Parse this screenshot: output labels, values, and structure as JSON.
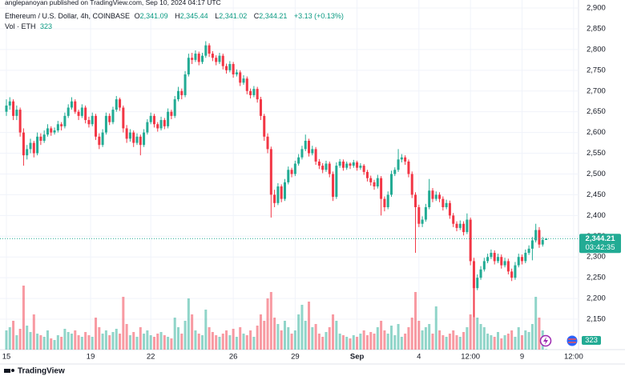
{
  "header": {
    "publisher": "anglepanoyan published on TradingView.com, Sep 10, 2024 04:17 UTC"
  },
  "footer": {
    "brand": "TradingView"
  },
  "chart_data": {
    "type": "candlestick",
    "legend": {
      "symbol": "Ethereum / U.S. Dollar, 4h, COINBASE",
      "ohlc": [
        {
          "key": "O",
          "value": "2,341.09"
        },
        {
          "key": "H",
          "value": "2,345.44"
        },
        {
          "key": "L",
          "value": "2,341.02"
        },
        {
          "key": "C",
          "value": "2,344.21"
        }
      ],
      "change": "+3.13 (+0.13%)",
      "volume_label": "Vol · ETH"
    },
    "countdown": "03:42:35",
    "up_color": "#22ab94",
    "down_color": "#f23645",
    "grid": true,
    "ylim": [
      2076.8,
      2919.3
    ],
    "yticks": [
      {
        "value": 2150,
        "label": "2,150"
      },
      {
        "value": 2200,
        "label": "2,200"
      },
      {
        "value": 2250,
        "label": "2,250"
      },
      {
        "value": 2300,
        "label": "2,300"
      },
      {
        "value": 2350,
        "label": "2,350"
      },
      {
        "value": 2400,
        "label": "2,400"
      },
      {
        "value": 2450,
        "label": "2,450"
      },
      {
        "value": 2500,
        "label": "2,500"
      },
      {
        "value": 2550,
        "label": "2,550"
      },
      {
        "value": 2600,
        "label": "2,600"
      },
      {
        "value": 2650,
        "label": "2,650"
      },
      {
        "value": 2700,
        "label": "2,700"
      },
      {
        "value": 2750,
        "label": "2,750"
      },
      {
        "value": 2800,
        "label": "2,800"
      },
      {
        "value": 2850,
        "label": "2,850"
      },
      {
        "value": 2900,
        "label": "2,900"
      }
    ],
    "xlim": [
      -1.86,
      166.43
    ],
    "xticks": [
      {
        "value": 0,
        "label": "15"
      },
      {
        "value": 24.5,
        "label": "19"
      },
      {
        "value": 42,
        "label": "22"
      },
      {
        "value": 66,
        "label": "26"
      },
      {
        "value": 84,
        "label": "29"
      },
      {
        "value": 102,
        "label": "Sep"
      },
      {
        "value": 120,
        "label": "4"
      },
      {
        "value": 135,
        "label": "12:00"
      },
      {
        "value": 150,
        "label": "9"
      },
      {
        "value": 165,
        "label": "12:00"
      }
    ],
    "vol_ylim": [
      0,
      45000
    ],
    "ohlc": [
      [
        2650,
        2680,
        2640,
        2665
      ],
      [
        2665,
        2685,
        2655,
        2675
      ],
      [
        2675,
        2680,
        2630,
        2640
      ],
      [
        2640,
        2665,
        2630,
        2655
      ],
      [
        2655,
        2660,
        2590,
        2600
      ],
      [
        2600,
        2610,
        2520,
        2545
      ],
      [
        2545,
        2570,
        2535,
        2560
      ],
      [
        2560,
        2585,
        2550,
        2575
      ],
      [
        2575,
        2580,
        2540,
        2550
      ],
      [
        2550,
        2600,
        2545,
        2590
      ],
      [
        2590,
        2598,
        2570,
        2580
      ],
      [
        2580,
        2605,
        2575,
        2595
      ],
      [
        2595,
        2620,
        2590,
        2610
      ],
      [
        2610,
        2615,
        2592,
        2600
      ],
      [
        2600,
        2612,
        2595,
        2605
      ],
      [
        2605,
        2628,
        2600,
        2620
      ],
      [
        2620,
        2625,
        2605,
        2615
      ],
      [
        2615,
        2648,
        2610,
        2640
      ],
      [
        2640,
        2668,
        2635,
        2660
      ],
      [
        2660,
        2685,
        2655,
        2675
      ],
      [
        2675,
        2680,
        2645,
        2650
      ],
      [
        2650,
        2655,
        2630,
        2640
      ],
      [
        2640,
        2668,
        2635,
        2660
      ],
      [
        2660,
        2665,
        2622,
        2630
      ],
      [
        2630,
        2638,
        2612,
        2620
      ],
      [
        2620,
        2648,
        2615,
        2640
      ],
      [
        2640,
        2645,
        2582,
        2590
      ],
      [
        2590,
        2598,
        2560,
        2570
      ],
      [
        2570,
        2608,
        2565,
        2600
      ],
      [
        2600,
        2648,
        2595,
        2640
      ],
      [
        2640,
        2646,
        2618,
        2625
      ],
      [
        2625,
        2662,
        2620,
        2655
      ],
      [
        2655,
        2688,
        2650,
        2680
      ],
      [
        2680,
        2684,
        2652,
        2660
      ],
      [
        2660,
        2665,
        2600,
        2610
      ],
      [
        2610,
        2618,
        2575,
        2585
      ],
      [
        2585,
        2608,
        2578,
        2600
      ],
      [
        2600,
        2605,
        2565,
        2575
      ],
      [
        2575,
        2598,
        2570,
        2590
      ],
      [
        2590,
        2595,
        2545,
        2570
      ],
      [
        2570,
        2608,
        2565,
        2600
      ],
      [
        2600,
        2632,
        2595,
        2625
      ],
      [
        2625,
        2648,
        2620,
        2640
      ],
      [
        2640,
        2645,
        2612,
        2620
      ],
      [
        2620,
        2625,
        2602,
        2610
      ],
      [
        2610,
        2638,
        2605,
        2630
      ],
      [
        2630,
        2635,
        2608,
        2615
      ],
      [
        2615,
        2658,
        2610,
        2650
      ],
      [
        2650,
        2655,
        2632,
        2640
      ],
      [
        2640,
        2688,
        2635,
        2680
      ],
      [
        2680,
        2710,
        2675,
        2700
      ],
      [
        2700,
        2706,
        2680,
        2690
      ],
      [
        2690,
        2748,
        2685,
        2740
      ],
      [
        2740,
        2790,
        2735,
        2780
      ],
      [
        2780,
        2792,
        2765,
        2775
      ],
      [
        2775,
        2798,
        2770,
        2790
      ],
      [
        2790,
        2795,
        2762,
        2770
      ],
      [
        2770,
        2792,
        2765,
        2785
      ],
      [
        2785,
        2820,
        2780,
        2810
      ],
      [
        2810,
        2815,
        2782,
        2790
      ],
      [
        2790,
        2796,
        2772,
        2780
      ],
      [
        2780,
        2786,
        2762,
        2770
      ],
      [
        2770,
        2792,
        2765,
        2785
      ],
      [
        2785,
        2790,
        2752,
        2760
      ],
      [
        2760,
        2766,
        2742,
        2750
      ],
      [
        2750,
        2772,
        2745,
        2765
      ],
      [
        2765,
        2770,
        2732,
        2740
      ],
      [
        2740,
        2752,
        2735,
        2745
      ],
      [
        2745,
        2750,
        2712,
        2720
      ],
      [
        2720,
        2738,
        2715,
        2730
      ],
      [
        2730,
        2735,
        2692,
        2700
      ],
      [
        2700,
        2706,
        2682,
        2690
      ],
      [
        2690,
        2712,
        2685,
        2705
      ],
      [
        2705,
        2710,
        2672,
        2680
      ],
      [
        2680,
        2686,
        2630,
        2640
      ],
      [
        2640,
        2645,
        2580,
        2590
      ],
      [
        2590,
        2598,
        2550,
        2560
      ],
      [
        2560,
        2566,
        2395,
        2450
      ],
      [
        2450,
        2462,
        2420,
        2430
      ],
      [
        2430,
        2478,
        2425,
        2470
      ],
      [
        2470,
        2475,
        2432,
        2440
      ],
      [
        2440,
        2488,
        2435,
        2480
      ],
      [
        2480,
        2518,
        2475,
        2510
      ],
      [
        2510,
        2515,
        2492,
        2500
      ],
      [
        2500,
        2532,
        2495,
        2525
      ],
      [
        2525,
        2548,
        2520,
        2540
      ],
      [
        2540,
        2568,
        2535,
        2560
      ],
      [
        2560,
        2595,
        2555,
        2580
      ],
      [
        2580,
        2585,
        2542,
        2550
      ],
      [
        2550,
        2568,
        2545,
        2560
      ],
      [
        2560,
        2565,
        2522,
        2530
      ],
      [
        2530,
        2536,
        2512,
        2520
      ],
      [
        2520,
        2526,
        2502,
        2510
      ],
      [
        2510,
        2532,
        2505,
        2525
      ],
      [
        2525,
        2530,
        2492,
        2500
      ],
      [
        2500,
        2506,
        2435,
        2445
      ],
      [
        2445,
        2528,
        2440,
        2520
      ],
      [
        2520,
        2536,
        2515,
        2530
      ],
      [
        2530,
        2535,
        2508,
        2515
      ],
      [
        2515,
        2530,
        2510,
        2525
      ],
      [
        2525,
        2528,
        2512,
        2520
      ],
      [
        2520,
        2534,
        2515,
        2528
      ],
      [
        2528,
        2532,
        2508,
        2515
      ],
      [
        2515,
        2526,
        2510,
        2520
      ],
      [
        2520,
        2524,
        2498,
        2505
      ],
      [
        2505,
        2510,
        2482,
        2490
      ],
      [
        2490,
        2496,
        2472,
        2480
      ],
      [
        2480,
        2486,
        2462,
        2470
      ],
      [
        2470,
        2498,
        2465,
        2490
      ],
      [
        2490,
        2495,
        2400,
        2440
      ],
      [
        2440,
        2446,
        2410,
        2420
      ],
      [
        2420,
        2458,
        2415,
        2450
      ],
      [
        2450,
        2508,
        2445,
        2500
      ],
      [
        2500,
        2516,
        2495,
        2510
      ],
      [
        2510,
        2560,
        2505,
        2535
      ],
      [
        2535,
        2548,
        2528,
        2540
      ],
      [
        2540,
        2545,
        2522,
        2530
      ],
      [
        2530,
        2535,
        2492,
        2500
      ],
      [
        2500,
        2506,
        2442,
        2450
      ],
      [
        2450,
        2456,
        2310,
        2420
      ],
      [
        2420,
        2426,
        2372,
        2380
      ],
      [
        2380,
        2398,
        2372,
        2390
      ],
      [
        2390,
        2428,
        2385,
        2420
      ],
      [
        2420,
        2488,
        2415,
        2460
      ],
      [
        2460,
        2466,
        2432,
        2440
      ],
      [
        2440,
        2458,
        2435,
        2450
      ],
      [
        2450,
        2456,
        2432,
        2440
      ],
      [
        2440,
        2446,
        2412,
        2420
      ],
      [
        2420,
        2438,
        2415,
        2430
      ],
      [
        2430,
        2436,
        2392,
        2400
      ],
      [
        2400,
        2406,
        2372,
        2380
      ],
      [
        2380,
        2386,
        2362,
        2370
      ],
      [
        2370,
        2388,
        2365,
        2380
      ],
      [
        2380,
        2386,
        2352,
        2360
      ],
      [
        2360,
        2405,
        2355,
        2390
      ],
      [
        2390,
        2395,
        2280,
        2290
      ],
      [
        2290,
        2298,
        2155,
        2225
      ],
      [
        2225,
        2258,
        2220,
        2250
      ],
      [
        2250,
        2278,
        2245,
        2270
      ],
      [
        2270,
        2298,
        2265,
        2290
      ],
      [
        2290,
        2308,
        2285,
        2300
      ],
      [
        2300,
        2318,
        2295,
        2310
      ],
      [
        2310,
        2316,
        2282,
        2290
      ],
      [
        2290,
        2308,
        2285,
        2300
      ],
      [
        2300,
        2306,
        2272,
        2280
      ],
      [
        2280,
        2298,
        2275,
        2290
      ],
      [
        2290,
        2296,
        2258,
        2265
      ],
      [
        2265,
        2272,
        2242,
        2250
      ],
      [
        2250,
        2288,
        2245,
        2280
      ],
      [
        2280,
        2308,
        2275,
        2300
      ],
      [
        2300,
        2306,
        2282,
        2290
      ],
      [
        2290,
        2318,
        2285,
        2310
      ],
      [
        2310,
        2328,
        2305,
        2320
      ],
      [
        2320,
        2348,
        2292,
        2340
      ],
      [
        2340,
        2380,
        2335,
        2365
      ],
      [
        2365,
        2372,
        2322,
        2330
      ],
      [
        2330,
        2348,
        2325,
        2341.09
      ],
      [
        2341.09,
        2345.44,
        2341.02,
        2344.21
      ]
    ],
    "volume": [
      12000,
      14000,
      18000,
      9000,
      13000,
      40000,
      15000,
      11000,
      22000,
      10000,
      9000,
      8000,
      12000,
      7000,
      6000,
      9000,
      8000,
      13000,
      11000,
      10000,
      12000,
      9000,
      8000,
      11000,
      9000,
      8000,
      20000,
      14000,
      10000,
      12000,
      9000,
      11000,
      13000,
      10000,
      33000,
      16000,
      9000,
      11000,
      8000,
      14000,
      10000,
      12000,
      9000,
      8000,
      10000,
      11000,
      9000,
      8000,
      7000,
      20000,
      14000,
      10000,
      18000,
      32000,
      22000,
      12000,
      10000,
      9000,
      25000,
      14000,
      11000,
      9000,
      8000,
      10000,
      12000,
      9000,
      13000,
      8000,
      14000,
      10000,
      9000,
      12000,
      8000,
      15000,
      22000,
      18000,
      32000,
      36000,
      20000,
      16000,
      12000,
      18000,
      14000,
      10000,
      12000,
      22000,
      28000,
      18000,
      30000,
      14000,
      16000,
      10000,
      8000,
      11000,
      14000,
      22000,
      18000,
      10000,
      9000,
      8000,
      7000,
      9000,
      8000,
      10000,
      12000,
      9000,
      11000,
      10000,
      14000,
      18000,
      12000,
      10000,
      15000,
      9000,
      16000,
      8000,
      10000,
      14000,
      20000,
      36000,
      18000,
      12000,
      14000,
      16000,
      10000,
      27000,
      12000,
      9000,
      8000,
      10000,
      12000,
      9000,
      8000,
      11000,
      14000,
      22000,
      44000,
      20000,
      16000,
      14000,
      10000,
      9000,
      8000,
      11000,
      7000,
      9000,
      10000,
      12000,
      8000,
      14000,
      9000,
      12000,
      11000,
      16000,
      33000,
      20000,
      12000,
      323
    ]
  }
}
